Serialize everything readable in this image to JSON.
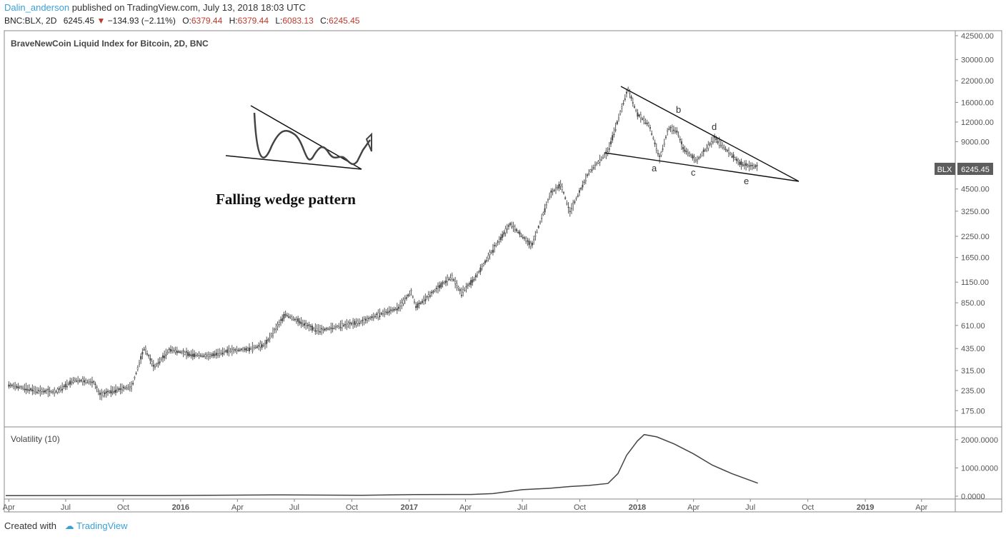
{
  "header": {
    "author": "Dalin_anderson",
    "published": "published on TradingView.com, July 13, 2018 18:03 UTC",
    "symbol": "BNC:BLX, 2D",
    "last": "6245.45",
    "change": "−134.93 (−2.11%)",
    "o_label": "O:",
    "o_value": "6379.44",
    "h_label": "H:",
    "h_value": "6379.44",
    "l_label": "L:",
    "l_value": "6083.13",
    "c_label": "C:",
    "c_value": "6245.45"
  },
  "footer": {
    "created_with": "Created with",
    "brand": "TradingView"
  },
  "colors": {
    "accent": "#3ba0d8",
    "down": "#c0392b",
    "candle": "#555555",
    "price_tag_bg": "#5d5d5d"
  },
  "chart_data": [
    {
      "type": "line",
      "title": "BraveNewCoin Liquid Index for Bitcoin, 2D, BNC",
      "y_scale": "log",
      "ylim": [
        150,
        42500
      ],
      "y_ticks": [
        "42500.00",
        "30000.00",
        "22000.00",
        "16000.00",
        "12000.00",
        "9000.00",
        "4500.00",
        "3250.00",
        "2250.00",
        "1650.00",
        "1150.00",
        "850.00",
        "610.00",
        "435.00",
        "315.00",
        "235.00",
        "175.00"
      ],
      "x_ticks": [
        "Apr",
        "Jul",
        "Oct",
        "2016",
        "Apr",
        "Jul",
        "Oct",
        "2017",
        "Apr",
        "Jul",
        "Oct",
        "2018",
        "Apr",
        "Jul",
        "Oct",
        "2019",
        "Apr"
      ],
      "x_range": [
        "2015-03-27",
        "2019-05-17"
      ],
      "series": [
        {
          "x": [
            "2015-04-01",
            "2015-05-15",
            "2015-06-15",
            "2015-07-15",
            "2015-08-15",
            "2015-08-25",
            "2015-09-15",
            "2015-10-15",
            "2015-11-04",
            "2015-11-20",
            "2015-12-15",
            "2016-01-15",
            "2016-02-15",
            "2016-03-15",
            "2016-04-15",
            "2016-05-15",
            "2016-06-17",
            "2016-07-01",
            "2016-08-01",
            "2016-08-15",
            "2016-09-15",
            "2016-10-15",
            "2016-11-15",
            "2016-12-15",
            "2017-01-04",
            "2017-01-12",
            "2017-02-15",
            "2017-03-10",
            "2017-03-25",
            "2017-04-15",
            "2017-05-15",
            "2017-06-12",
            "2017-07-16",
            "2017-08-15",
            "2017-09-01",
            "2017-09-15",
            "2017-10-15",
            "2017-11-15",
            "2017-12-17",
            "2018-01-01",
            "2018-01-20",
            "2018-02-06",
            "2018-02-20",
            "2018-03-06",
            "2018-03-15",
            "2018-04-06",
            "2018-05-05",
            "2018-06-01",
            "2018-06-15",
            "2018-06-29",
            "2018-07-13"
          ],
          "y": [
            255,
            235,
            230,
            275,
            265,
            220,
            235,
            250,
            440,
            330,
            430,
            400,
            390,
            420,
            430,
            460,
            720,
            670,
            580,
            570,
            610,
            640,
            720,
            790,
            1000,
            800,
            1050,
            1250,
            980,
            1200,
            1850,
            2700,
            1950,
            4200,
            4800,
            3200,
            5700,
            7800,
            19500,
            13500,
            11500,
            7000,
            11000,
            10500,
            8200,
            6800,
            9500,
            7400,
            6500,
            6300,
            6245.45
          ]
        }
      ],
      "annotations": {
        "labels": [
          "a",
          "b",
          "c",
          "d",
          "e"
        ],
        "inset_caption": "Falling wedge pattern"
      },
      "last_price_tag": {
        "symbol": "BLX",
        "value": "6245.45"
      }
    },
    {
      "type": "line",
      "title": "Volatility (10)",
      "ylim": [
        0,
        2300
      ],
      "y_ticks": [
        "2000.0000",
        "1000.0000",
        "0.0000"
      ],
      "series": [
        {
          "x": [
            "2015-03-27",
            "2015-12-01",
            "2016-06-15",
            "2016-10-15",
            "2017-01-10",
            "2017-04-10",
            "2017-05-15",
            "2017-07-01",
            "2017-08-15",
            "2017-09-15",
            "2017-10-15",
            "2017-11-15",
            "2017-12-01",
            "2017-12-15",
            "2018-01-01",
            "2018-01-12",
            "2018-02-01",
            "2018-03-01",
            "2018-04-01",
            "2018-05-01",
            "2018-06-01",
            "2018-07-13"
          ],
          "y": [
            20,
            22,
            45,
            30,
            55,
            60,
            90,
            230,
            280,
            340,
            380,
            450,
            800,
            1450,
            1950,
            2180,
            2100,
            1850,
            1500,
            1100,
            800,
            460
          ]
        }
      ]
    }
  ]
}
